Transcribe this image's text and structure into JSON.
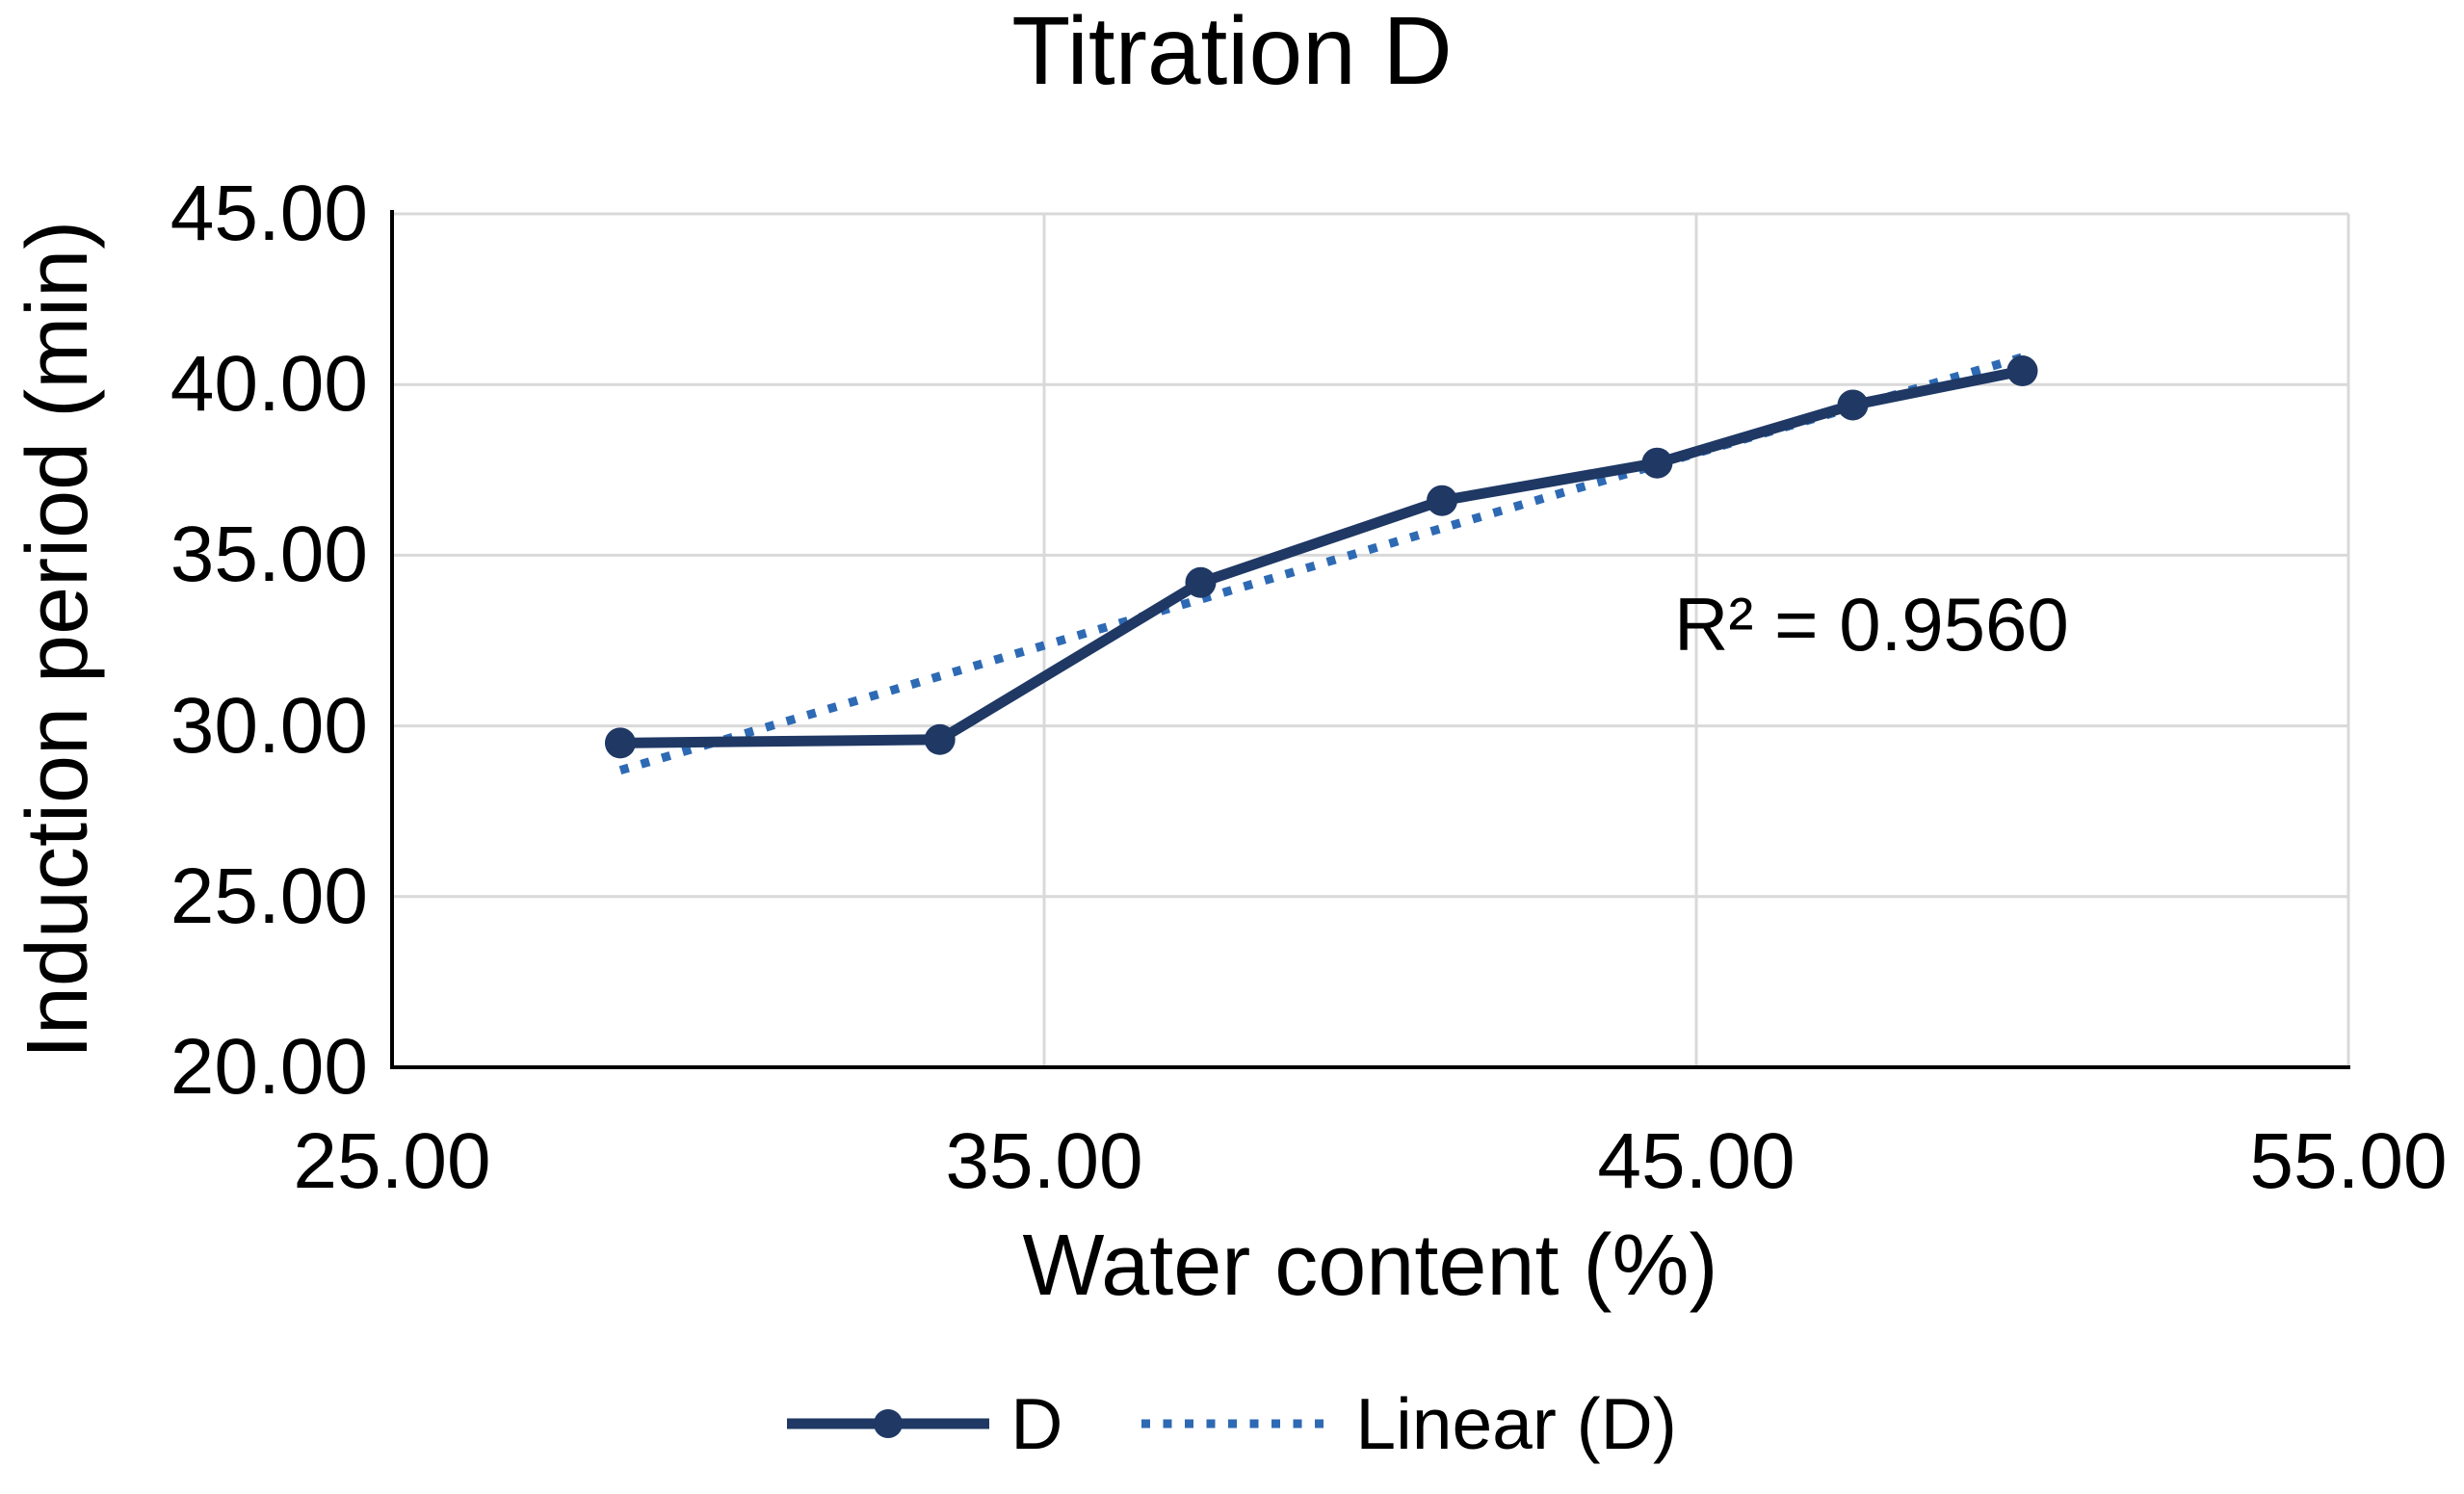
{
  "chart_data": {
    "type": "line",
    "title": "Titration D",
    "xlabel": "Water content (%)",
    "ylabel": "Induction period (min)",
    "xlim": [
      25,
      55
    ],
    "ylim": [
      20,
      45
    ],
    "xticks": [
      25,
      35,
      45,
      55
    ],
    "yticks": [
      45,
      40,
      35,
      30,
      25,
      20
    ],
    "tick_label_format": "two-decimal",
    "grid": true,
    "legend_position": "bottom",
    "annotation": {
      "text": "R² = 0.9560"
    },
    "series": [
      {
        "name": "D",
        "style": "solid-line-circle-markers",
        "color": "#1f3864",
        "x": [
          28.5,
          33.4,
          37.4,
          41.1,
          44.4,
          47.4,
          50.0
        ],
        "y": [
          29.5,
          29.6,
          34.2,
          36.6,
          37.7,
          39.4,
          40.4
        ]
      },
      {
        "name": "Linear (D)",
        "style": "dotted-trendline",
        "color": "#2e6ab4",
        "x": [
          28.5,
          50.0
        ],
        "y": [
          28.7,
          40.8
        ]
      }
    ]
  },
  "colors": {
    "series": "#1f3864",
    "trendline": "#2e6ab4",
    "gridline": "#d9d9d9",
    "axis": "#000000",
    "text": "#000000",
    "background": "#ffffff"
  }
}
